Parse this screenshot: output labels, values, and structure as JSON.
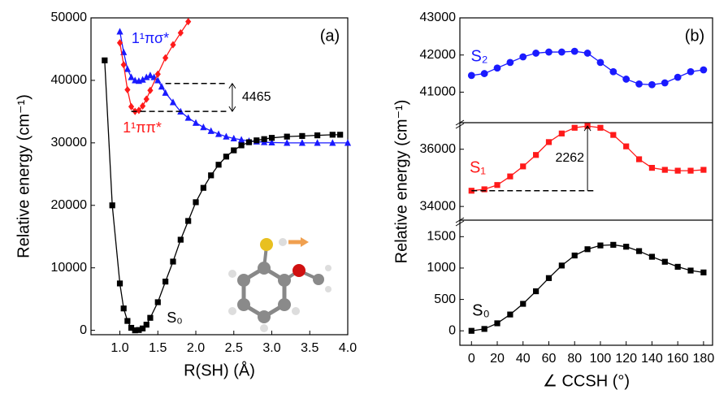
{
  "chart_data": [
    {
      "type": "line",
      "title": "(a)",
      "xlabel": "R(SH) (Å)",
      "ylabel": "Relative energy (cm⁻¹)",
      "xlim": [
        0.62,
        4.0
      ],
      "ylim": [
        -700,
        50000
      ],
      "xticks": [
        {
          "value": 1,
          "label": "1.0"
        },
        1.5,
        {
          "value": 2,
          "label": "2.0"
        },
        2.5,
        {
          "value": 3,
          "label": "3.0"
        },
        3.5,
        {
          "value": 4,
          "label": "4.0"
        }
      ],
      "yticks": [
        0,
        10000,
        20000,
        30000,
        40000,
        50000
      ],
      "annotation": 4465,
      "series": [
        {
          "name": "1¹πσ*",
          "color": "#1a1aff",
          "marker": "triangle",
          "x": [
            1.0,
            1.05,
            1.1,
            1.15,
            1.2,
            1.25,
            1.3,
            1.35,
            1.4,
            1.45,
            1.5,
            1.55,
            1.6,
            1.7,
            1.8,
            1.9,
            2.0,
            2.1,
            2.2,
            2.3,
            2.4,
            2.5,
            2.6,
            2.7,
            2.8,
            2.9,
            3.0,
            3.2,
            3.4,
            3.6,
            3.8,
            4.0
          ],
          "values": [
            47800,
            44500,
            41800,
            40500,
            40000,
            39900,
            40100,
            40500,
            40800,
            40500,
            40000,
            39000,
            38000,
            36500,
            35000,
            34000,
            33200,
            32500,
            31900,
            31400,
            31000,
            30700,
            30500,
            30300,
            30200,
            30100,
            30050,
            30000,
            30000,
            30000,
            30000,
            30000
          ]
        },
        {
          "name": "1¹ππ*",
          "color": "#ff1a1a",
          "marker": "diamond",
          "x": [
            1.0,
            1.05,
            1.1,
            1.15,
            1.2,
            1.25,
            1.3,
            1.35,
            1.4,
            1.5,
            1.6,
            1.7,
            1.8,
            1.9
          ],
          "values": [
            46000,
            42500,
            38500,
            35800,
            35035,
            35200,
            35900,
            37000,
            38400,
            41000,
            43600,
            45700,
            47600,
            49400
          ]
        },
        {
          "name": "S₀",
          "color": "#000000",
          "marker": "square",
          "x": [
            0.8,
            0.9,
            1.0,
            1.05,
            1.1,
            1.15,
            1.2,
            1.25,
            1.3,
            1.35,
            1.4,
            1.5,
            1.6,
            1.7,
            1.8,
            1.9,
            2.0,
            2.1,
            2.2,
            2.3,
            2.4,
            2.5,
            2.6,
            2.7,
            2.8,
            2.9,
            3.0,
            3.2,
            3.4,
            3.6,
            3.8,
            3.9
          ],
          "values": [
            43200,
            20000,
            7500,
            3500,
            1500,
            400,
            0,
            50,
            300,
            900,
            2000,
            4500,
            7800,
            11000,
            14500,
            17500,
            20500,
            22800,
            24800,
            26500,
            27800,
            28800,
            29600,
            30100,
            30400,
            30600,
            30800,
            31000,
            31100,
            31200,
            31300,
            31300
          ]
        }
      ]
    },
    {
      "type": "line",
      "title": "(b)",
      "xlabel": "∠ CCSH (°)",
      "ylabel": "Relative energy (cm⁻¹)",
      "xlim": [
        -9,
        187
      ],
      "xticks": [
        0,
        20,
        40,
        60,
        80,
        100,
        120,
        140,
        160,
        180
      ],
      "x": [
        0,
        10,
        20,
        30,
        40,
        50,
        60,
        70,
        80,
        90,
        100,
        110,
        120,
        130,
        140,
        150,
        160,
        170,
        180
      ],
      "annotation": 2262,
      "panels": [
        {
          "name": "S₂",
          "color": "#1a1aff",
          "marker": "circle",
          "ylim": [
            40200,
            43000
          ],
          "yticks": [
            41000,
            42000,
            43000
          ],
          "values": [
            41450,
            41500,
            41650,
            41800,
            41950,
            42050,
            42080,
            42080,
            42100,
            42050,
            41800,
            41550,
            41350,
            41220,
            41200,
            41250,
            41400,
            41550,
            41600
          ]
        },
        {
          "name": "S₁",
          "color": "#ff1a1a",
          "marker": "square",
          "ylim": [
            33550,
            36900
          ],
          "yticks": [
            34000,
            36000
          ],
          "values": [
            34550,
            34600,
            34750,
            35050,
            35400,
            35800,
            36250,
            36550,
            36750,
            36812,
            36750,
            36500,
            36100,
            35650,
            35350,
            35280,
            35250,
            35250,
            35280
          ]
        },
        {
          "name": "S₀",
          "color": "#000000",
          "marker": "square",
          "ylim": [
            -230,
            1750
          ],
          "yticks": [
            0,
            500,
            1000,
            1500
          ],
          "values": [
            0,
            30,
            120,
            260,
            430,
            630,
            840,
            1040,
            1200,
            1300,
            1360,
            1370,
            1340,
            1270,
            1180,
            1100,
            1020,
            960,
            930
          ]
        }
      ]
    }
  ]
}
